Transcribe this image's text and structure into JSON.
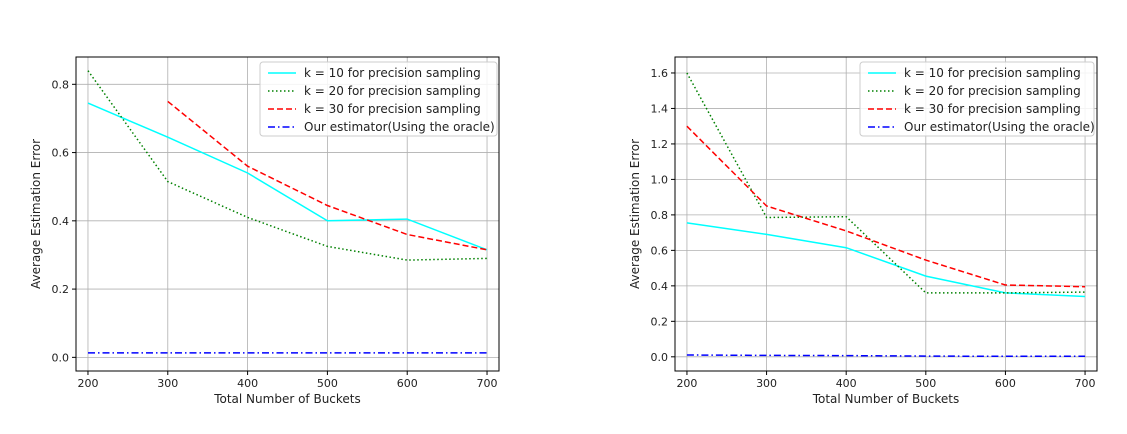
{
  "chart_data": [
    {
      "type": "line",
      "title": "",
      "xlabel": "Total Number of Buckets",
      "ylabel": "Average Estimation Error",
      "xlim": [
        185,
        715
      ],
      "ylim": [
        -0.04,
        0.88
      ],
      "xticks": [
        200,
        300,
        400,
        500,
        600,
        700
      ],
      "yticks": [
        0.0,
        0.2,
        0.4,
        0.6,
        0.8
      ],
      "yticklabels": [
        "0.0",
        "0.2",
        "0.4",
        "0.6",
        "0.8"
      ],
      "grid": true,
      "legend_position": "top-right",
      "series": [
        {
          "name": "k = 10 for precision sampling",
          "color": "#00ffff",
          "style": "solid",
          "x": [
            200,
            300,
            400,
            500,
            600,
            700
          ],
          "y": [
            0.745,
            0.645,
            0.54,
            0.4,
            0.405,
            0.315
          ]
        },
        {
          "name": "k = 20 for precision sampling",
          "color": "#008000",
          "style": "dotted",
          "x": [
            200,
            300,
            400,
            500,
            600,
            700
          ],
          "y": [
            0.84,
            0.515,
            0.41,
            0.325,
            0.285,
            0.29
          ]
        },
        {
          "name": "k = 30 for precision sampling",
          "color": "#ff0000",
          "style": "dashed",
          "x": [
            300,
            400,
            500,
            600,
            700
          ],
          "y": [
            0.75,
            0.56,
            0.445,
            0.36,
            0.315
          ]
        },
        {
          "name": "Our estimator(Using the oracle)",
          "color": "#0000ff",
          "style": "dashdot",
          "x": [
            200,
            300,
            400,
            500,
            600,
            700
          ],
          "y": [
            0.013,
            0.013,
            0.013,
            0.013,
            0.013,
            0.013
          ]
        }
      ]
    },
    {
      "type": "line",
      "title": "",
      "xlabel": "Total Number of Buckets",
      "ylabel": "Average Estimation Error",
      "xlim": [
        185,
        715
      ],
      "ylim": [
        -0.08,
        1.69
      ],
      "xticks": [
        200,
        300,
        400,
        500,
        600,
        700
      ],
      "yticks": [
        0.0,
        0.2,
        0.4,
        0.6,
        0.8,
        1.0,
        1.2,
        1.4,
        1.6
      ],
      "yticklabels": [
        "0.0",
        "0.2",
        "0.4",
        "0.6",
        "0.8",
        "1.0",
        "1.2",
        "1.4",
        "1.6"
      ],
      "grid": true,
      "legend_position": "top-right",
      "series": [
        {
          "name": "k = 10 for precision sampling",
          "color": "#00ffff",
          "style": "solid",
          "x": [
            200,
            300,
            400,
            500,
            600,
            700
          ],
          "y": [
            0.755,
            0.69,
            0.615,
            0.455,
            0.36,
            0.34
          ]
        },
        {
          "name": "k = 20 for precision sampling",
          "color": "#008000",
          "style": "dotted",
          "x": [
            200,
            300,
            400,
            500,
            600,
            700
          ],
          "y": [
            1.6,
            0.785,
            0.79,
            0.36,
            0.36,
            0.365
          ]
        },
        {
          "name": "k = 30 for precision sampling",
          "color": "#ff0000",
          "style": "dashed",
          "x": [
            200,
            300,
            400,
            500,
            600,
            700
          ],
          "y": [
            1.3,
            0.85,
            0.71,
            0.545,
            0.405,
            0.395
          ]
        },
        {
          "name": "Our estimator(Using the oracle)",
          "color": "#0000ff",
          "style": "dashdot",
          "x": [
            200,
            300,
            400,
            500,
            600,
            700
          ],
          "y": [
            0.01,
            0.008,
            0.007,
            0.004,
            0.003,
            0.003
          ]
        }
      ]
    }
  ]
}
